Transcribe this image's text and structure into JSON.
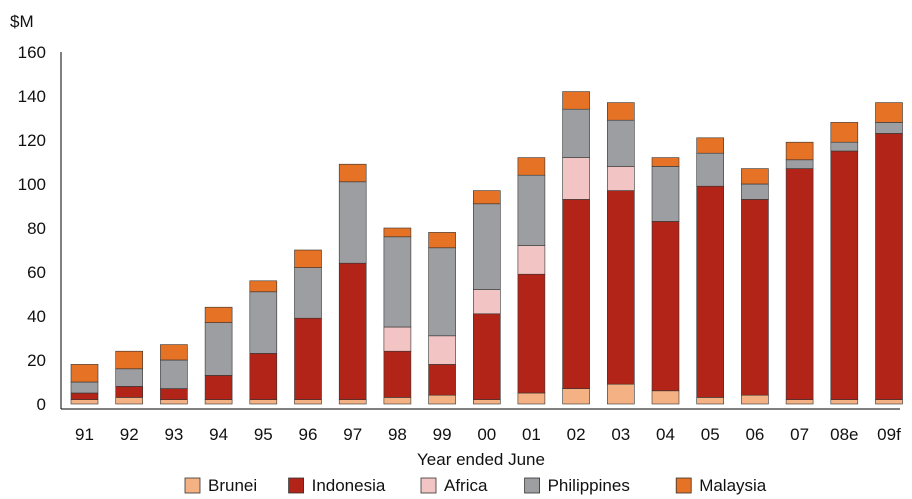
{
  "chart_data": {
    "type": "bar",
    "stacked": true,
    "title": "",
    "xlabel": "Year ended June",
    "ylabel": "$M",
    "ylim": [
      0,
      160
    ],
    "yticks": [
      0,
      20,
      40,
      60,
      80,
      100,
      120,
      140,
      160
    ],
    "grid": false,
    "legend_position": "bottom",
    "categories": [
      "91",
      "92",
      "93",
      "94",
      "95",
      "96",
      "97",
      "98",
      "99",
      "00",
      "01",
      "02",
      "03",
      "04",
      "05",
      "06",
      "07",
      "08e",
      "09f"
    ],
    "series": [
      {
        "name": "Brunei",
        "color": "#f4b183",
        "values": [
          2,
          3,
          2,
          2,
          2,
          2,
          2,
          3,
          4,
          2,
          5,
          7,
          9,
          6,
          3,
          4,
          2,
          2,
          2
        ]
      },
      {
        "name": "Indonesia",
        "color": "#b22418",
        "values": [
          3,
          5,
          5,
          11,
          21,
          37,
          62,
          21,
          14,
          39,
          54,
          86,
          88,
          77,
          96,
          89,
          105,
          113,
          121
        ]
      },
      {
        "name": "Africa",
        "color": "#f2c4c4",
        "values": [
          0,
          0,
          0,
          0,
          0,
          0,
          0,
          11,
          13,
          11,
          13,
          19,
          11,
          0,
          0,
          0,
          0,
          0,
          0
        ]
      },
      {
        "name": "Philippines",
        "color": "#9d9ea2",
        "values": [
          5,
          8,
          13,
          24,
          28,
          23,
          37,
          41,
          40,
          39,
          32,
          22,
          21,
          25,
          15,
          7,
          4,
          4,
          5
        ]
      },
      {
        "name": "Malaysia",
        "color": "#e67225",
        "values": [
          8,
          8,
          7,
          7,
          5,
          8,
          8,
          4,
          7,
          6,
          8,
          8,
          8,
          4,
          7,
          7,
          8,
          9,
          9
        ]
      }
    ]
  }
}
